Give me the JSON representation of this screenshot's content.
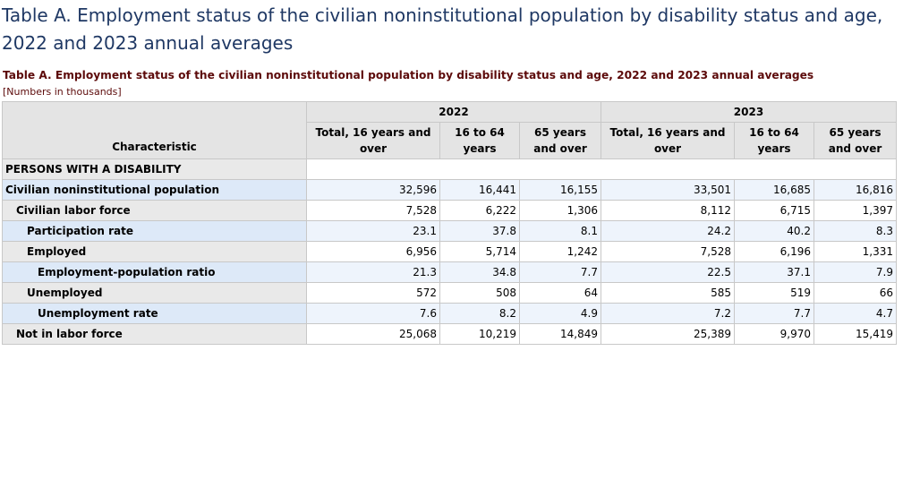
{
  "page": {
    "title": "Table A. Employment status of the civilian noninstitutional population by disability status and age, 2022 and 2023 annual averages"
  },
  "table": {
    "caption": "Table A. Employment status of the civilian noninstitutional population by disability status and age, 2022 and 2023 annual averages",
    "note": "[Numbers in thousands]",
    "characteristic_header": "Characteristic",
    "year_headers": [
      "2022",
      "2023"
    ],
    "column_headers": [
      "Total, 16 years and over",
      "16 to 64 years",
      "65 years and over",
      "Total, 16 years and over",
      "16 to 64 years",
      "65 years and over"
    ],
    "section_label": "PERSONS WITH A DISABILITY",
    "rows": [
      {
        "label": "Civilian noninstitutional population",
        "values": [
          "32,596",
          "16,441",
          "16,155",
          "33,501",
          "16,685",
          "16,816"
        ]
      },
      {
        "label": "Civilian labor force",
        "values": [
          "7,528",
          "6,222",
          "1,306",
          "8,112",
          "6,715",
          "1,397"
        ]
      },
      {
        "label": "Participation rate",
        "values": [
          "23.1",
          "37.8",
          "8.1",
          "24.2",
          "40.2",
          "8.3"
        ]
      },
      {
        "label": "Employed",
        "values": [
          "6,956",
          "5,714",
          "1,242",
          "7,528",
          "6,196",
          "1,331"
        ]
      },
      {
        "label": "Employment-population ratio",
        "values": [
          "21.3",
          "34.8",
          "7.7",
          "22.5",
          "37.1",
          "7.9"
        ]
      },
      {
        "label": "Unemployed",
        "values": [
          "572",
          "508",
          "64",
          "585",
          "519",
          "66"
        ]
      },
      {
        "label": "Unemployment rate",
        "values": [
          "7.6",
          "8.2",
          "4.9",
          "7.2",
          "7.7",
          "4.7"
        ]
      },
      {
        "label": "Not in labor force",
        "values": [
          "25,068",
          "10,219",
          "14,849",
          "25,389",
          "9,970",
          "15,419"
        ]
      }
    ]
  },
  "colors": {
    "page_title": "#1f3864",
    "caption": "#5c0a0a",
    "header_background": "#e4e4e4",
    "alt_row_background": "#eef4fc",
    "alt_row_label_background": "#dde9f8"
  }
}
